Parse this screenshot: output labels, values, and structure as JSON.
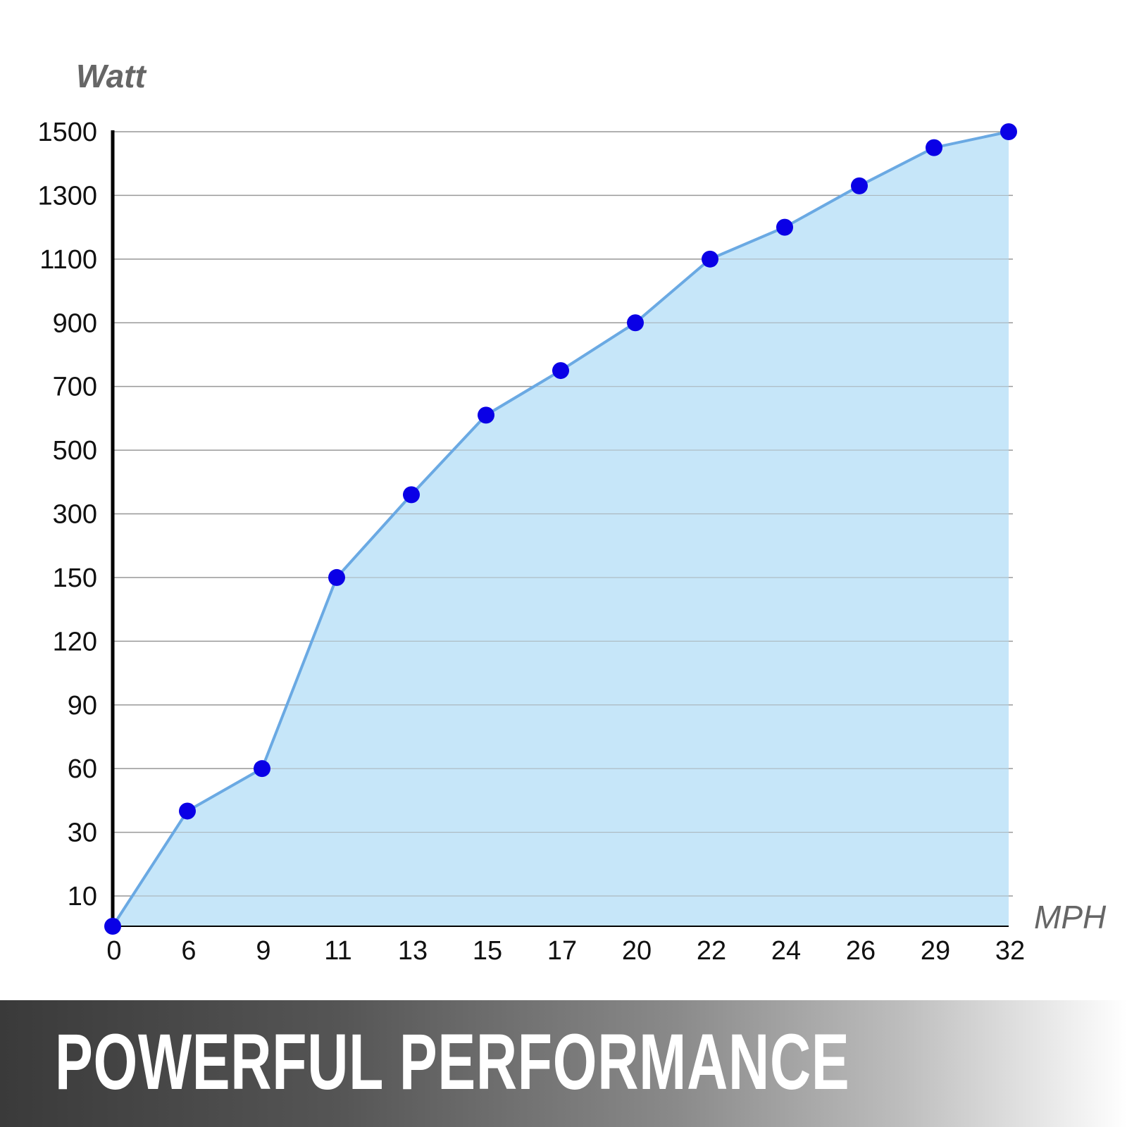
{
  "chart_data": {
    "type": "area",
    "title": "",
    "xlabel": "MPH",
    "ylabel": "Watt",
    "x_ticks": [
      "0",
      "6",
      "9",
      "11",
      "13",
      "15",
      "17",
      "20",
      "22",
      "24",
      "26",
      "29",
      "32"
    ],
    "y_ticks": [
      10,
      30,
      60,
      90,
      120,
      150,
      300,
      500,
      700,
      900,
      1100,
      1300,
      1500
    ],
    "y_scale": "categorical tick spacing (non-linear)",
    "grid": "horizontal",
    "x": [
      0,
      6,
      9,
      11,
      13,
      15,
      17,
      20,
      22,
      24,
      26,
      29,
      32
    ],
    "values": [
      0,
      40,
      60,
      150,
      360,
      610,
      750,
      900,
      1100,
      1200,
      1330,
      1450,
      1500
    ],
    "colors": {
      "fill": "#c6e6f9",
      "line": "#6aa9e3",
      "marker": "#0a00e6",
      "grid": "#9a9a9a",
      "axis": "#000000",
      "label": "#666666"
    }
  },
  "banner": {
    "text": "POWERFUL PERFORMANCE"
  }
}
